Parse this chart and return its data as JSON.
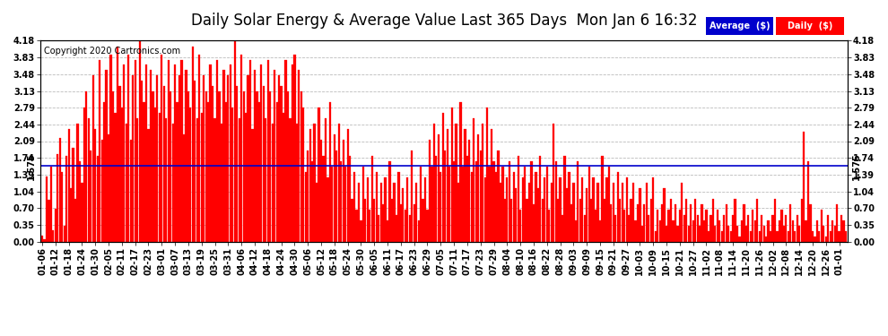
{
  "title": "Daily Solar Energy & Average Value Last 365 Days  Mon Jan 6 16:32",
  "copyright": "Copyright 2020 Cartronics.com",
  "average_value": 1.575,
  "average_label": "1.575",
  "ylim": [
    0.0,
    4.18
  ],
  "yticks": [
    0.0,
    0.35,
    0.7,
    1.04,
    1.39,
    1.74,
    2.09,
    2.44,
    2.79,
    3.13,
    3.48,
    3.83,
    4.18
  ],
  "bar_color": "#ff0000",
  "avg_line_color": "#0000cc",
  "background_color": "#ffffff",
  "grid_color": "#bbbbbb",
  "title_fontsize": 12,
  "copyright_fontsize": 7,
  "tick_fontsize": 7,
  "legend_avg_color": "#0000cc",
  "legend_daily_color": "#ff0000",
  "x_dates": [
    "01-06",
    "01-12",
    "01-18",
    "01-24",
    "01-30",
    "02-05",
    "02-11",
    "02-17",
    "02-23",
    "03-01",
    "03-07",
    "03-13",
    "03-19",
    "03-25",
    "03-31",
    "04-06",
    "04-12",
    "04-18",
    "04-24",
    "04-30",
    "05-06",
    "05-12",
    "05-18",
    "05-24",
    "05-30",
    "06-05",
    "06-11",
    "06-17",
    "06-23",
    "06-29",
    "07-05",
    "07-11",
    "07-17",
    "07-23",
    "07-29",
    "08-04",
    "08-10",
    "08-16",
    "08-22",
    "08-28",
    "09-03",
    "09-09",
    "09-15",
    "09-21",
    "09-27",
    "10-03",
    "10-09",
    "10-15",
    "10-21",
    "10-27",
    "11-02",
    "11-08",
    "11-14",
    "11-20",
    "11-26",
    "12-02",
    "12-08",
    "12-14",
    "12-20",
    "12-26",
    "01-01"
  ],
  "x_tick_positions": [
    0,
    6,
    12,
    18,
    24,
    30,
    36,
    42,
    48,
    54,
    60,
    66,
    72,
    78,
    84,
    90,
    96,
    102,
    108,
    114,
    120,
    126,
    132,
    138,
    144,
    150,
    156,
    162,
    168,
    174,
    180,
    186,
    192,
    198,
    204,
    210,
    216,
    222,
    228,
    234,
    240,
    246,
    252,
    258,
    264,
    270,
    276,
    282,
    288,
    294,
    300,
    306,
    312,
    318,
    324,
    330,
    336,
    342,
    348,
    354,
    360
  ],
  "daily_values": [
    0.13,
    0.05,
    1.35,
    0.87,
    1.56,
    0.24,
    0.68,
    1.82,
    2.15,
    1.45,
    0.34,
    1.78,
    2.34,
    1.12,
    1.95,
    0.89,
    2.45,
    1.67,
    1.23,
    2.78,
    3.12,
    2.56,
    1.89,
    3.45,
    2.34,
    1.78,
    3.78,
    2.12,
    2.89,
    3.56,
    2.23,
    3.89,
    3.12,
    2.67,
    4.05,
    3.23,
    2.78,
    3.67,
    2.45,
    3.89,
    2.12,
    3.45,
    3.78,
    2.56,
    4.18,
    3.34,
    2.89,
    3.67,
    2.34,
    3.56,
    3.12,
    2.78,
    3.45,
    2.67,
    3.89,
    3.23,
    2.56,
    3.78,
    3.12,
    2.45,
    3.67,
    2.89,
    3.45,
    3.78,
    2.23,
    3.56,
    3.12,
    2.78,
    4.05,
    3.34,
    2.56,
    3.89,
    2.67,
    3.45,
    3.12,
    2.89,
    3.67,
    3.23,
    2.56,
    3.78,
    3.12,
    2.45,
    3.56,
    2.89,
    3.45,
    3.67,
    2.78,
    4.18,
    3.23,
    2.56,
    3.89,
    3.12,
    2.67,
    3.45,
    3.78,
    2.34,
    3.56,
    3.12,
    2.89,
    3.67,
    3.23,
    2.56,
    3.78,
    3.12,
    2.45,
    3.56,
    2.89,
    3.45,
    3.23,
    2.67,
    3.78,
    3.12,
    2.56,
    3.67,
    3.89,
    2.45,
    3.56,
    3.12,
    2.78,
    1.45,
    1.89,
    2.34,
    1.67,
    2.45,
    1.23,
    2.78,
    2.12,
    1.78,
    2.56,
    1.34,
    2.89,
    1.56,
    2.23,
    1.89,
    2.45,
    1.67,
    2.12,
    1.56,
    2.34,
    1.78,
    0.89,
    1.45,
    0.67,
    1.23,
    0.45,
    1.56,
    0.89,
    1.34,
    0.67,
    1.78,
    0.89,
    1.45,
    0.56,
    1.23,
    0.78,
    1.34,
    0.45,
    1.67,
    0.89,
    1.23,
    0.56,
    1.45,
    0.78,
    1.12,
    0.67,
    1.34,
    0.56,
    1.89,
    0.78,
    1.23,
    0.45,
    1.56,
    0.89,
    1.34,
    0.67,
    2.12,
    1.56,
    2.45,
    1.78,
    2.23,
    1.45,
    2.67,
    1.89,
    2.34,
    1.56,
    2.78,
    1.67,
    2.45,
    1.23,
    2.89,
    1.56,
    2.34,
    1.78,
    2.12,
    1.45,
    2.56,
    1.67,
    2.23,
    1.89,
    2.45,
    1.34,
    2.78,
    1.56,
    2.34,
    1.67,
    1.45,
    1.89,
    1.23,
    1.56,
    0.89,
    1.34,
    1.67,
    0.89,
    1.45,
    1.12,
    1.78,
    0.67,
    1.34,
    1.56,
    0.89,
    1.23,
    1.67,
    0.78,
    1.45,
    1.12,
    1.78,
    0.89,
    1.34,
    1.56,
    0.67,
    1.23,
    2.45,
    1.67,
    0.89,
    1.34,
    0.56,
    1.78,
    1.12,
    1.45,
    0.78,
    1.23,
    0.45,
    1.67,
    0.89,
    1.34,
    0.56,
    1.12,
    1.56,
    0.89,
    1.34,
    0.67,
    1.23,
    0.45,
    1.78,
    0.89,
    1.34,
    1.56,
    0.78,
    1.23,
    0.56,
    1.45,
    0.89,
    1.23,
    0.67,
    1.34,
    0.56,
    0.89,
    1.23,
    0.45,
    0.78,
    1.12,
    0.34,
    0.78,
    1.23,
    0.56,
    0.89,
    1.34,
    0.23,
    0.67,
    0.45,
    0.78,
    1.12,
    0.34,
    0.67,
    0.89,
    0.45,
    0.78,
    0.34,
    0.67,
    1.23,
    0.56,
    0.89,
    0.34,
    0.78,
    0.45,
    0.89,
    0.56,
    0.34,
    0.78,
    0.45,
    0.67,
    0.23,
    0.56,
    0.89,
    0.34,
    0.67,
    0.45,
    0.23,
    0.56,
    0.78,
    0.34,
    0.23,
    0.56,
    0.89,
    0.34,
    0.12,
    0.45,
    0.78,
    0.34,
    0.56,
    0.23,
    0.67,
    0.45,
    0.89,
    0.23,
    0.56,
    0.34,
    0.12,
    0.45,
    0.23,
    0.56,
    0.89,
    0.23,
    0.45,
    0.67,
    0.34,
    0.56,
    0.23,
    0.78,
    0.45,
    0.23,
    0.56,
    0.34,
    0.89,
    2.28,
    0.45,
    1.67,
    0.78,
    0.23,
    0.12,
    0.45,
    0.23,
    0.67,
    0.34,
    0.12,
    0.56,
    0.23,
    0.45,
    0.34,
    0.78,
    0.23,
    0.56,
    0.45,
    0.23
  ]
}
